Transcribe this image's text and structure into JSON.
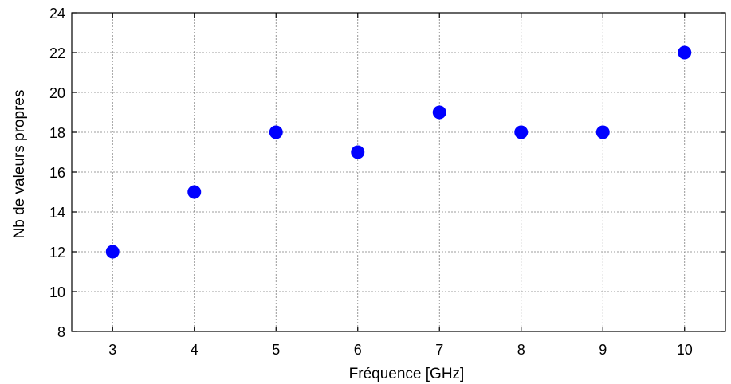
{
  "chart_data": {
    "type": "scatter",
    "title": "",
    "xlabel": "Fréquence [GHz]",
    "ylabel": "Nb de valeurs propres",
    "x": [
      3,
      4,
      5,
      6,
      7,
      8,
      9,
      10
    ],
    "y": [
      12,
      15,
      18,
      17,
      19,
      18,
      18,
      22
    ],
    "xlim": [
      2.5,
      10.5
    ],
    "ylim": [
      8,
      24
    ],
    "xticks": [
      3,
      4,
      5,
      6,
      7,
      8,
      9,
      10
    ],
    "yticks": [
      8,
      10,
      12,
      14,
      16,
      18,
      20,
      22,
      24
    ],
    "grid": true,
    "marker_color": "#0000ff"
  }
}
